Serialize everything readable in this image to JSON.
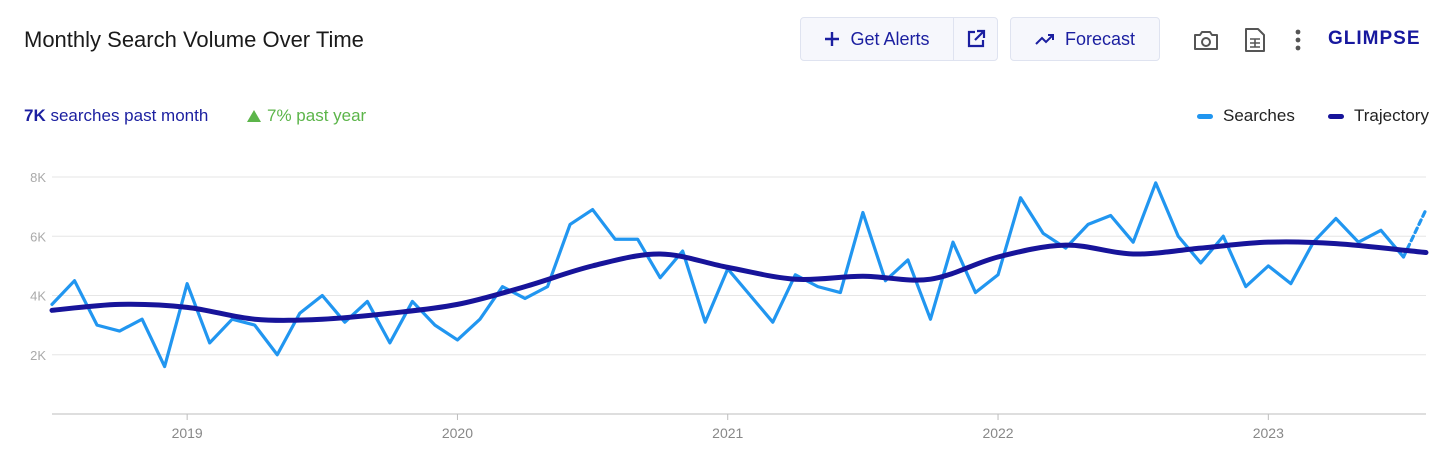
{
  "header": {
    "title": "Monthly Search Volume Over Time",
    "get_alerts_label": "Get Alerts",
    "forecast_label": "Forecast",
    "logo": "GLIMPSE"
  },
  "stats": {
    "volume_value": "7K",
    "volume_suffix": "searches past month",
    "growth": "7% past year"
  },
  "colors": {
    "searches": "#2196f0",
    "trajectory": "#17149a",
    "growth": "#5cb54a"
  },
  "icons": [
    "plus-icon",
    "external-link-icon",
    "trending-up-icon",
    "camera-icon",
    "spreadsheet-icon",
    "more-vertical-icon"
  ],
  "chart_data": {
    "type": "line",
    "grid": true,
    "legend": "top-right",
    "ylim": [
      0,
      8000
    ],
    "yticks": [
      2000,
      4000,
      6000,
      8000
    ],
    "ytick_labels": [
      "2K",
      "4K",
      "6K",
      "8K"
    ],
    "xlim": [
      "2018-07",
      "2023-08"
    ],
    "xticks": [
      "2019",
      "2020",
      "2021",
      "2022",
      "2023"
    ],
    "series": [
      {
        "name": "Searches",
        "x": [
          "2018-07",
          "2018-08",
          "2018-09",
          "2018-10",
          "2018-11",
          "2018-12",
          "2019-01",
          "2019-02",
          "2019-03",
          "2019-04",
          "2019-05",
          "2019-06",
          "2019-07",
          "2019-08",
          "2019-09",
          "2019-10",
          "2019-11",
          "2019-12",
          "2020-01",
          "2020-02",
          "2020-03",
          "2020-04",
          "2020-05",
          "2020-06",
          "2020-07",
          "2020-08",
          "2020-09",
          "2020-10",
          "2020-11",
          "2020-12",
          "2021-01",
          "2021-02",
          "2021-03",
          "2021-04",
          "2021-05",
          "2021-06",
          "2021-07",
          "2021-08",
          "2021-09",
          "2021-10",
          "2021-11",
          "2021-12",
          "2022-01",
          "2022-02",
          "2022-03",
          "2022-04",
          "2022-05",
          "2022-06",
          "2022-07",
          "2022-08",
          "2022-09",
          "2022-10",
          "2022-11",
          "2022-12",
          "2023-01",
          "2023-02",
          "2023-03",
          "2023-04",
          "2023-05",
          "2023-06",
          "2023-07",
          "2023-08"
        ],
        "values": [
          3700,
          4500,
          3000,
          2800,
          3200,
          1600,
          4400,
          2400,
          3200,
          3000,
          2000,
          3400,
          4000,
          3100,
          3800,
          2400,
          3800,
          3000,
          2500,
          3200,
          4300,
          3900,
          4300,
          6400,
          6900,
          5900,
          5900,
          4600,
          5500,
          3100,
          4900,
          4000,
          3100,
          4700,
          4300,
          4100,
          6800,
          4500,
          5200,
          3200,
          5800,
          4100,
          4700,
          7300,
          6100,
          5600,
          6400,
          6700,
          5800,
          7800,
          6000,
          5100,
          6000,
          4300,
          5000,
          4400,
          5800,
          6600,
          5800,
          6200,
          5300,
          6900
        ]
      },
      {
        "name": "Trajectory",
        "x": [
          "2018-07",
          "2018-10",
          "2019-01",
          "2019-04",
          "2019-07",
          "2019-10",
          "2020-01",
          "2020-04",
          "2020-07",
          "2020-10",
          "2021-01",
          "2021-04",
          "2021-07",
          "2021-10",
          "2022-01",
          "2022-04",
          "2022-07",
          "2022-10",
          "2023-01",
          "2023-04",
          "2023-08"
        ],
        "values": [
          3500,
          3700,
          3600,
          3200,
          3200,
          3400,
          3700,
          4300,
          5000,
          5400,
          4950,
          4550,
          4650,
          4550,
          5300,
          5700,
          5400,
          5600,
          5800,
          5750,
          5450
        ]
      }
    ]
  }
}
